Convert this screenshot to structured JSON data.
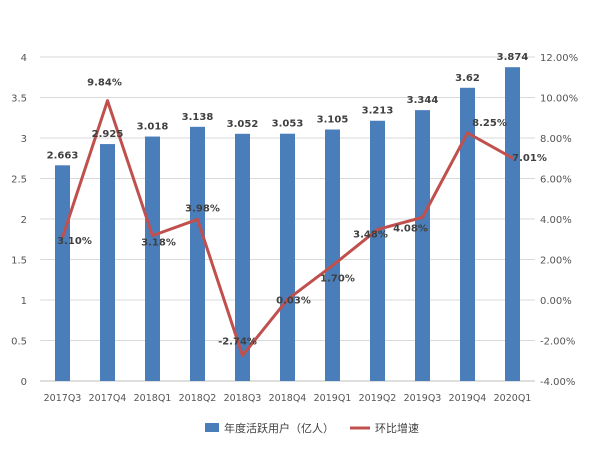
{
  "chart_data": {
    "type": "bar+line",
    "categories": [
      "2017Q3",
      "2017Q4",
      "2018Q1",
      "2018Q2",
      "2018Q3",
      "2018Q4",
      "2019Q1",
      "2019Q2",
      "2019Q3",
      "2019Q4",
      "2020Q1"
    ],
    "series": [
      {
        "name": "年度活跃用户（亿人）",
        "type": "bar",
        "axis": "left",
        "color": "#4a7ebb",
        "values": [
          2.663,
          2.925,
          3.018,
          3.138,
          3.052,
          3.053,
          3.105,
          3.213,
          3.344,
          3.62,
          3.874
        ],
        "labels": [
          "2.663",
          "2.925",
          "3.018",
          "3.138",
          "3.052",
          "3.053",
          "3.105",
          "3.213",
          "3.344",
          "3.62",
          "3.874"
        ]
      },
      {
        "name": "环比增速",
        "type": "line",
        "axis": "right",
        "color": "#c0504d",
        "values": [
          3.1,
          9.84,
          3.18,
          3.98,
          -2.74,
          0.03,
          1.7,
          3.48,
          4.08,
          8.25,
          7.01
        ],
        "labels": [
          "3.10%",
          "9.84%",
          "3.18%",
          "3.98%",
          "-2.74%",
          "0.03%",
          "1.70%",
          "3.48%",
          "4.08%",
          "8.25%",
          "7.01%"
        ]
      }
    ],
    "y_left": {
      "min": 0,
      "max": 4,
      "ticks": [
        "0",
        "0.5",
        "1",
        "1.5",
        "2",
        "2.5",
        "3",
        "3.5",
        "4"
      ]
    },
    "y_right": {
      "min": -4,
      "max": 12,
      "ticks": [
        "-4.00%",
        "-2.00%",
        "0.00%",
        "2.00%",
        "4.00%",
        "6.00%",
        "8.00%",
        "10.00%",
        "12.00%"
      ]
    },
    "grid": true,
    "legend_position": "bottom"
  }
}
